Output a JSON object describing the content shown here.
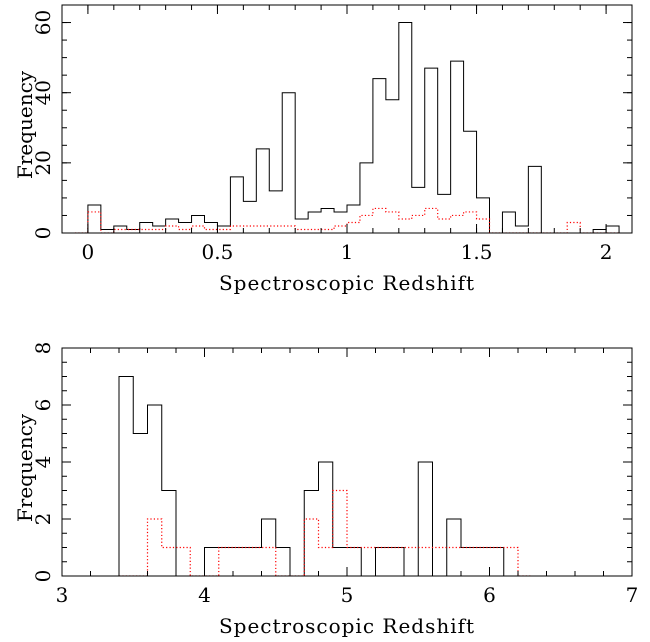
{
  "chart_data": [
    {
      "type": "histogram",
      "xlabel": "Spectroscopic Redshift",
      "ylabel": "Frequency",
      "xlim": [
        -0.1,
        2.1
      ],
      "ylim": [
        0,
        65
      ],
      "x_ticks": [
        "0",
        "0.5",
        "1",
        "1.5",
        "2"
      ],
      "x_tick_values": [
        0,
        0.5,
        1,
        1.5,
        2
      ],
      "y_ticks": [
        "0",
        "20",
        "40",
        "60"
      ],
      "y_tick_values": [
        0,
        20,
        40,
        60
      ],
      "bin_width": 0.05,
      "series": [
        {
          "style": "solid",
          "color": "#000000",
          "bin_starts": [
            -0.05,
            0.0,
            0.05,
            0.1,
            0.15,
            0.2,
            0.25,
            0.3,
            0.35,
            0.4,
            0.45,
            0.5,
            0.55,
            0.6,
            0.65,
            0.7,
            0.75,
            0.8,
            0.85,
            0.9,
            0.95,
            1.0,
            1.05,
            1.1,
            1.15,
            1.2,
            1.25,
            1.3,
            1.35,
            1.4,
            1.45,
            1.5,
            1.55,
            1.6,
            1.65,
            1.7,
            1.75,
            1.8,
            1.85,
            1.9,
            1.95,
            2.0
          ],
          "values": [
            0,
            8,
            1,
            2,
            1,
            3,
            2,
            4,
            3,
            5,
            3,
            2,
            16,
            9,
            24,
            12,
            40,
            4,
            6,
            7,
            6,
            8,
            20,
            44,
            38,
            60,
            13,
            47,
            11,
            49,
            29,
            10,
            0,
            6,
            2,
            19,
            0,
            0,
            0,
            0,
            1,
            2
          ]
        },
        {
          "style": "dotted",
          "color": "#ff0000",
          "bin_starts": [
            -0.05,
            0.0,
            0.05,
            0.1,
            0.15,
            0.2,
            0.25,
            0.3,
            0.35,
            0.4,
            0.45,
            0.5,
            0.55,
            0.6,
            0.65,
            0.7,
            0.75,
            0.8,
            0.85,
            0.9,
            0.95,
            1.0,
            1.05,
            1.1,
            1.15,
            1.2,
            1.25,
            1.3,
            1.35,
            1.4,
            1.45,
            1.5,
            1.55,
            1.6,
            1.65,
            1.7,
            1.75,
            1.8,
            1.85,
            1.9,
            1.95,
            2.0
          ],
          "values": [
            0,
            6,
            0,
            1,
            1,
            1,
            1,
            2,
            1,
            2,
            1,
            1,
            2,
            2,
            2,
            2,
            2,
            1,
            1,
            1,
            2,
            3,
            5,
            7,
            6,
            4,
            5,
            7,
            4,
            5,
            6,
            4,
            0,
            0,
            0,
            0,
            0,
            0,
            3,
            0,
            0,
            0
          ]
        }
      ]
    },
    {
      "type": "histogram",
      "xlabel": "Spectroscopic Redshift",
      "ylabel": "Frequency",
      "xlim": [
        3,
        7
      ],
      "ylim": [
        0,
        8
      ],
      "x_ticks": [
        "3",
        "4",
        "5",
        "6",
        "7"
      ],
      "x_tick_values": [
        3,
        4,
        5,
        6,
        7
      ],
      "y_ticks": [
        "0",
        "2",
        "4",
        "6",
        "8"
      ],
      "y_tick_values": [
        0,
        2,
        4,
        6,
        8
      ],
      "bin_width": 0.1,
      "series": [
        {
          "style": "solid",
          "color": "#000000",
          "bin_starts": [
            3.4,
            3.5,
            3.6,
            3.7,
            3.8,
            3.9,
            4.0,
            4.1,
            4.2,
            4.3,
            4.4,
            4.5,
            4.6,
            4.7,
            4.8,
            4.9,
            5.0,
            5.1,
            5.2,
            5.3,
            5.4,
            5.5,
            5.6,
            5.7,
            5.8,
            5.9,
            6.0,
            6.1
          ],
          "values": [
            7,
            5,
            6,
            3,
            0,
            0,
            1,
            1,
            1,
            1,
            2,
            1,
            0,
            3,
            4,
            1,
            1,
            0,
            1,
            1,
            0,
            4,
            0,
            2,
            1,
            1,
            1,
            0
          ]
        },
        {
          "style": "dotted",
          "color": "#ff0000",
          "bin_starts": [
            3.4,
            3.5,
            3.6,
            3.7,
            3.8,
            3.9,
            4.0,
            4.1,
            4.2,
            4.3,
            4.4,
            4.5,
            4.6,
            4.7,
            4.8,
            4.9,
            5.0,
            5.1,
            5.2,
            5.3,
            5.4,
            5.5,
            5.6,
            5.7,
            5.8,
            5.9,
            6.0,
            6.1,
            6.2
          ],
          "values": [
            0,
            0,
            2,
            1,
            1,
            0,
            0,
            1,
            1,
            1,
            1,
            0,
            0,
            2,
            1,
            3,
            1,
            1,
            1,
            1,
            1,
            1,
            1,
            1,
            1,
            1,
            1,
            1,
            0
          ]
        }
      ]
    }
  ]
}
